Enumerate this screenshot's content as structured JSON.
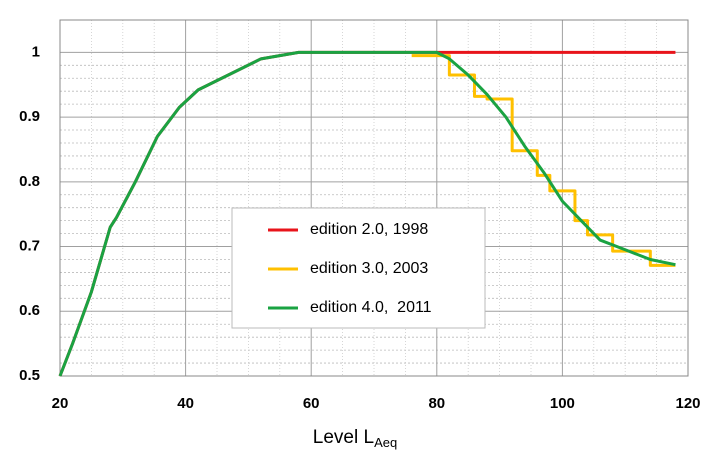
{
  "chart_data": {
    "type": "line",
    "x_label": "Level L",
    "x_label_sub": "Aeq",
    "xlim": [
      20,
      120
    ],
    "xticks": [
      20,
      40,
      60,
      80,
      100,
      120
    ],
    "ylim": [
      0.5,
      1.05
    ],
    "yticks": [
      0.5,
      0.6,
      0.7,
      0.8,
      0.9,
      1
    ],
    "grid": true,
    "minor_grid": true,
    "legend_position": "center",
    "series": [
      {
        "name": "edition 2.0, 1998",
        "color": "#e8141b",
        "x": [
          20,
          22,
          25,
          28,
          29,
          32,
          35.5,
          39,
          42,
          52,
          58,
          80,
          118
        ],
        "values": [
          0.5,
          0.55,
          0.63,
          0.73,
          0.745,
          0.8,
          0.87,
          0.915,
          0.942,
          0.99,
          1,
          1,
          1
        ]
      },
      {
        "name": "edition 3.0, 2003",
        "color": "#ffc000",
        "x": [
          76,
          82,
          82,
          86,
          86,
          88,
          88,
          92,
          92,
          96,
          96,
          98,
          98,
          102,
          102,
          104,
          104,
          108,
          108,
          114,
          114,
          118
        ],
        "values": [
          0.995,
          0.995,
          0.965,
          0.965,
          0.932,
          0.932,
          0.928,
          0.928,
          0.848,
          0.848,
          0.81,
          0.81,
          0.786,
          0.786,
          0.74,
          0.74,
          0.718,
          0.718,
          0.693,
          0.693,
          0.671,
          0.671
        ]
      },
      {
        "name": "edition 4.0,  2011",
        "color": "#1aa342",
        "x": [
          20,
          22,
          25,
          28,
          29,
          32,
          35.5,
          39,
          42,
          52,
          58,
          80,
          82,
          85,
          88,
          91,
          94,
          97,
          100,
          103,
          106,
          110,
          114,
          118
        ],
        "values": [
          0.5,
          0.55,
          0.63,
          0.73,
          0.745,
          0.8,
          0.87,
          0.915,
          0.942,
          0.99,
          1,
          1,
          0.99,
          0.965,
          0.935,
          0.9,
          0.855,
          0.815,
          0.77,
          0.74,
          0.71,
          0.695,
          0.68,
          0.672
        ]
      }
    ]
  }
}
